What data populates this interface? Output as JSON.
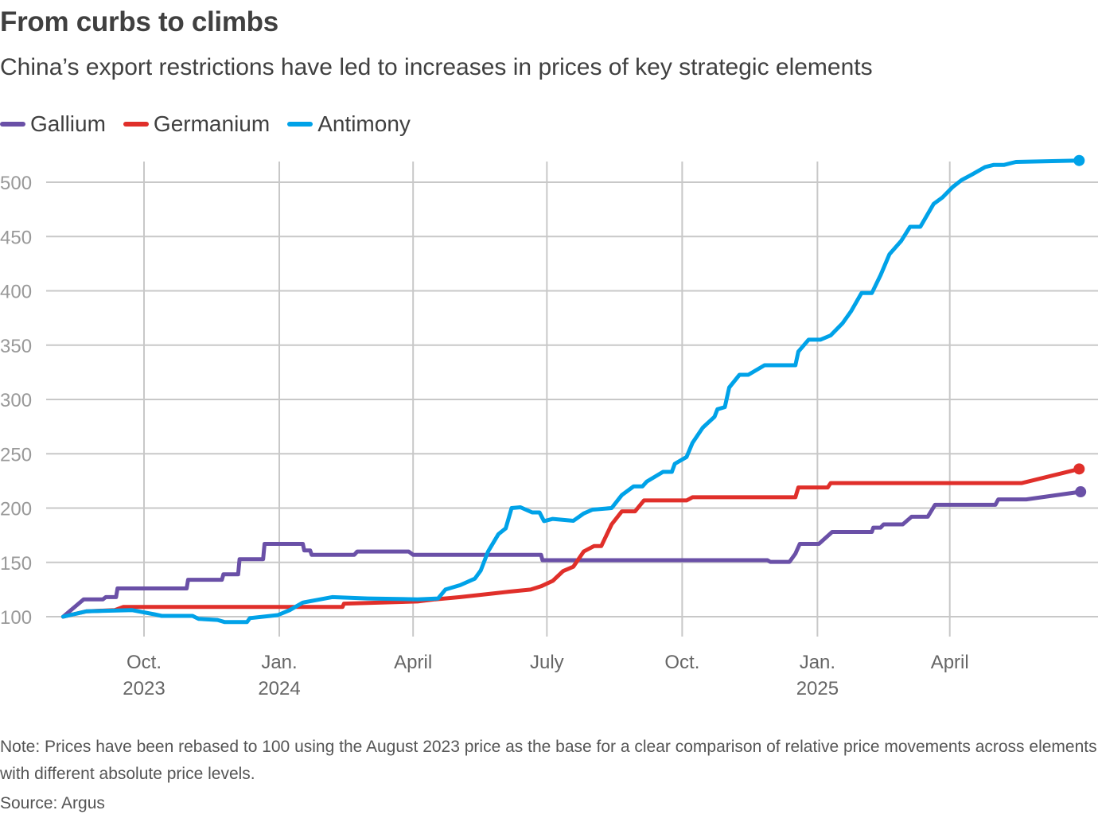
{
  "chart_data": {
    "type": "line",
    "title": "From curbs to climbs",
    "subtitle": "China’s export restrictions have led to increases in prices of key strategic elements",
    "x_unit": "days since 2023-08-01",
    "xlim": [
      0,
      705
    ],
    "ylim": [
      80,
      520
    ],
    "yticks": [
      100,
      150,
      200,
      250,
      300,
      350,
      400,
      450,
      500
    ],
    "xticks": [
      {
        "x": 61,
        "label": "Oct.",
        "year": "2023"
      },
      {
        "x": 153,
        "label": "Jan.",
        "year": "2024"
      },
      {
        "x": 244,
        "label": "April",
        "year": ""
      },
      {
        "x": 335,
        "label": "July",
        "year": ""
      },
      {
        "x": 427,
        "label": "Oct.",
        "year": ""
      },
      {
        "x": 519,
        "label": "Jan.",
        "year": "2025"
      },
      {
        "x": 609,
        "label": "April",
        "year": ""
      }
    ],
    "grid": true,
    "legend_position": "top-left",
    "series": [
      {
        "name": "Gallium",
        "color": "#6a50a7",
        "points": [
          [
            6,
            100
          ],
          [
            20,
            116
          ],
          [
            33,
            116
          ],
          [
            35,
            118
          ],
          [
            42,
            118
          ],
          [
            43,
            126
          ],
          [
            90,
            126
          ],
          [
            91,
            134
          ],
          [
            114,
            134
          ],
          [
            115,
            139
          ],
          [
            125,
            139
          ],
          [
            126,
            153
          ],
          [
            142,
            153
          ],
          [
            143,
            167
          ],
          [
            169,
            167
          ],
          [
            170,
            161
          ],
          [
            174,
            161
          ],
          [
            175,
            157
          ],
          [
            204,
            157
          ],
          [
            206,
            160
          ],
          [
            241,
            160
          ],
          [
            244,
            157
          ],
          [
            331,
            157
          ],
          [
            332,
            152
          ],
          [
            485,
            152
          ],
          [
            487,
            150.5
          ],
          [
            500,
            150.5
          ],
          [
            504,
            158
          ],
          [
            507,
            167
          ],
          [
            520,
            167
          ],
          [
            529,
            178
          ],
          [
            556,
            178
          ],
          [
            557,
            182
          ],
          [
            562,
            182
          ],
          [
            564,
            185
          ],
          [
            577,
            185
          ],
          [
            583,
            192
          ],
          [
            594,
            192
          ],
          [
            599,
            203
          ],
          [
            640,
            203
          ],
          [
            642,
            208
          ],
          [
            661,
            208
          ],
          [
            698,
            215
          ]
        ]
      },
      {
        "name": "Germanium",
        "color": "#e02f2a",
        "points": [
          [
            6,
            100
          ],
          [
            22,
            105
          ],
          [
            41,
            106
          ],
          [
            47,
            109
          ],
          [
            196,
            109
          ],
          [
            197,
            112
          ],
          [
            247,
            114
          ],
          [
            259,
            116
          ],
          [
            276,
            118
          ],
          [
            300,
            121.6
          ],
          [
            309,
            123
          ],
          [
            324,
            125
          ],
          [
            331,
            128
          ],
          [
            339,
            133
          ],
          [
            346,
            142
          ],
          [
            353,
            146
          ],
          [
            360,
            160
          ],
          [
            367,
            165
          ],
          [
            372,
            165
          ],
          [
            379,
            185
          ],
          [
            386,
            197
          ],
          [
            395,
            197
          ],
          [
            401,
            207
          ],
          [
            430,
            207
          ],
          [
            434,
            210
          ],
          [
            504,
            210
          ],
          [
            506,
            219
          ],
          [
            526,
            219
          ],
          [
            528,
            223
          ],
          [
            658,
            223
          ],
          [
            697,
            236
          ]
        ]
      },
      {
        "name": "Antimony",
        "color": "#00a2e8",
        "points": [
          [
            6,
            100
          ],
          [
            22,
            105
          ],
          [
            53,
            106
          ],
          [
            68,
            102.2
          ],
          [
            73,
            100.7
          ],
          [
            94,
            100.7
          ],
          [
            98,
            98
          ],
          [
            111,
            97
          ],
          [
            116,
            95
          ],
          [
            131,
            95
          ],
          [
            133,
            98.7
          ],
          [
            152,
            101.5
          ],
          [
            160,
            106
          ],
          [
            169,
            113
          ],
          [
            189,
            118
          ],
          [
            213,
            116.8
          ],
          [
            247,
            116
          ],
          [
            261,
            116.8
          ],
          [
            266,
            125
          ],
          [
            276,
            129
          ],
          [
            286,
            135
          ],
          [
            290,
            142.5
          ],
          [
            295,
            160
          ],
          [
            302,
            176
          ],
          [
            307,
            181.3
          ],
          [
            311,
            200
          ],
          [
            317,
            200.7
          ],
          [
            325,
            196
          ],
          [
            330,
            196
          ],
          [
            333,
            188
          ],
          [
            339,
            190
          ],
          [
            353,
            188.3
          ],
          [
            360,
            195
          ],
          [
            366,
            198.5
          ],
          [
            379,
            200
          ],
          [
            386,
            212
          ],
          [
            394,
            220
          ],
          [
            400,
            220
          ],
          [
            403,
            224.5
          ],
          [
            414,
            233.3
          ],
          [
            420,
            233.3
          ],
          [
            422,
            240.7
          ],
          [
            430,
            247
          ],
          [
            434,
            260
          ],
          [
            441,
            274
          ],
          [
            449,
            284
          ],
          [
            451,
            291
          ],
          [
            456,
            293
          ],
          [
            459,
            311
          ],
          [
            466,
            322.7
          ],
          [
            472,
            322.7
          ],
          [
            483,
            331.5
          ],
          [
            504,
            331.5
          ],
          [
            506,
            344
          ],
          [
            513,
            355
          ],
          [
            521,
            355
          ],
          [
            528,
            359
          ],
          [
            536,
            370
          ],
          [
            542,
            381.5
          ],
          [
            549,
            398
          ],
          [
            556,
            398
          ],
          [
            562,
            414.6
          ],
          [
            568,
            433.7
          ],
          [
            576,
            446
          ],
          [
            582,
            459
          ],
          [
            589,
            459
          ],
          [
            598,
            480
          ],
          [
            604,
            486
          ],
          [
            611,
            495.6
          ],
          [
            617,
            502
          ],
          [
            624,
            507
          ],
          [
            633,
            514
          ],
          [
            639,
            516
          ],
          [
            646,
            516
          ],
          [
            654,
            518.7
          ],
          [
            697,
            520
          ]
        ]
      }
    ],
    "note": "Note: Prices have been rebased to 100 using the August 2023 price as the base for a clear comparison of relative price movements across elements with different absolute price levels.",
    "source": "Source: Argus"
  }
}
